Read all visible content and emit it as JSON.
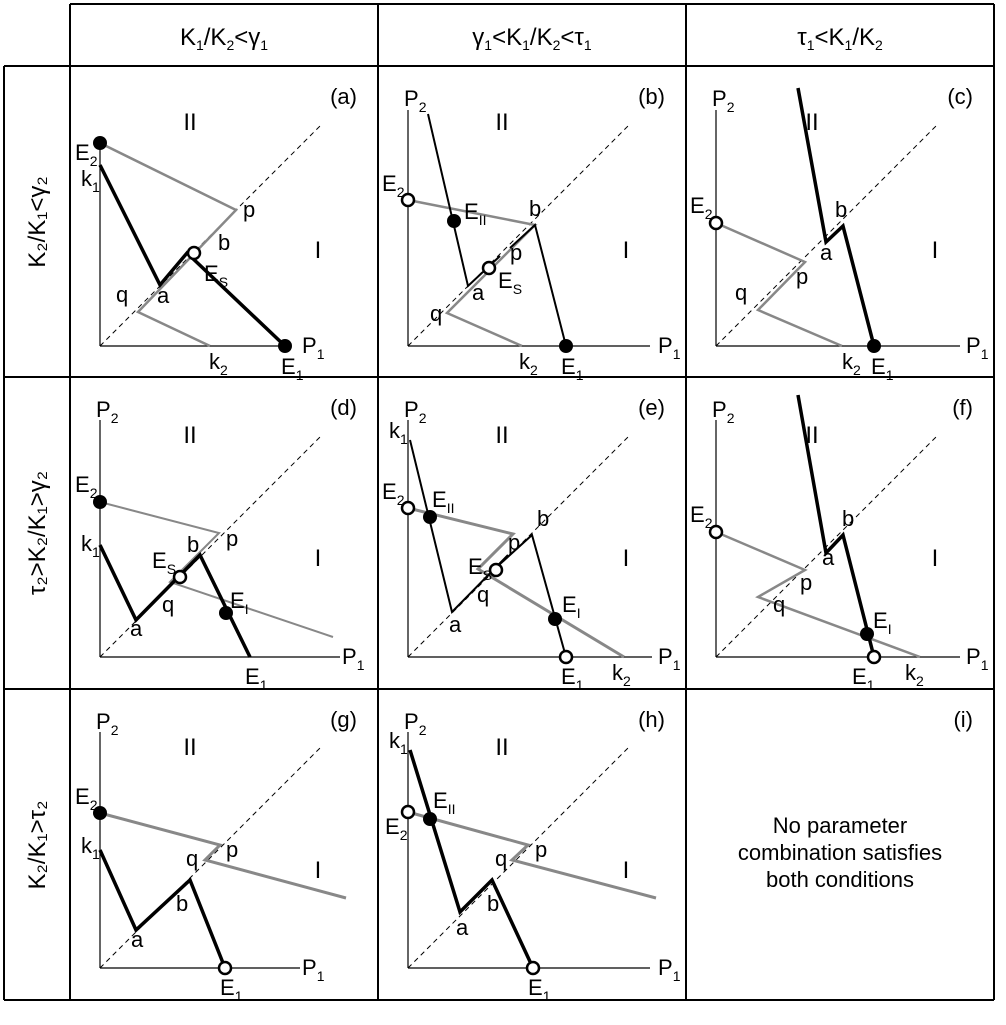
{
  "column_headers": [
    {
      "a": "K",
      "a_sub": "1",
      "b": "/K",
      "b_sub": "2",
      "c": "<γ",
      "c_sub": "1"
    },
    {
      "a": "γ",
      "a_sub": "1",
      "b": "<K",
      "b_sub": "1",
      "c": "/K",
      "c_sub": "2",
      "d": "<τ",
      "d_sub": "1"
    },
    {
      "a": "τ",
      "a_sub": "1",
      "b": "<K",
      "b_sub": "1",
      "c": "/K",
      "c_sub": "2"
    }
  ],
  "row_headers": [
    {
      "text": "K₂/K₁<γ₂"
    },
    {
      "text": "τ₂>K₂/K₁>γ₂"
    },
    {
      "text": "K₂/K₁>τ₂"
    }
  ],
  "panel_letters": [
    "(a)",
    "(b)",
    "(c)",
    "(d)",
    "(e)",
    "(f)",
    "(g)",
    "(h)",
    "(i)"
  ],
  "axes": {
    "y": "P",
    "y_sub": "2",
    "x": "P",
    "x_sub": "1"
  },
  "regions": {
    "I": "I",
    "II": "II"
  },
  "points": {
    "E": "E",
    "k": "k",
    "s1": "1",
    "s2": "2",
    "sS": "S",
    "sI": "I",
    "sII": "II",
    "a": "a",
    "b": "b",
    "p": "p",
    "q": "q"
  },
  "empty_message": [
    "No parameter",
    "combination satisfies",
    "both conditions"
  ],
  "colors": {
    "thick_line": "#000000",
    "gray_line": "#888888",
    "grid": "#000000"
  }
}
